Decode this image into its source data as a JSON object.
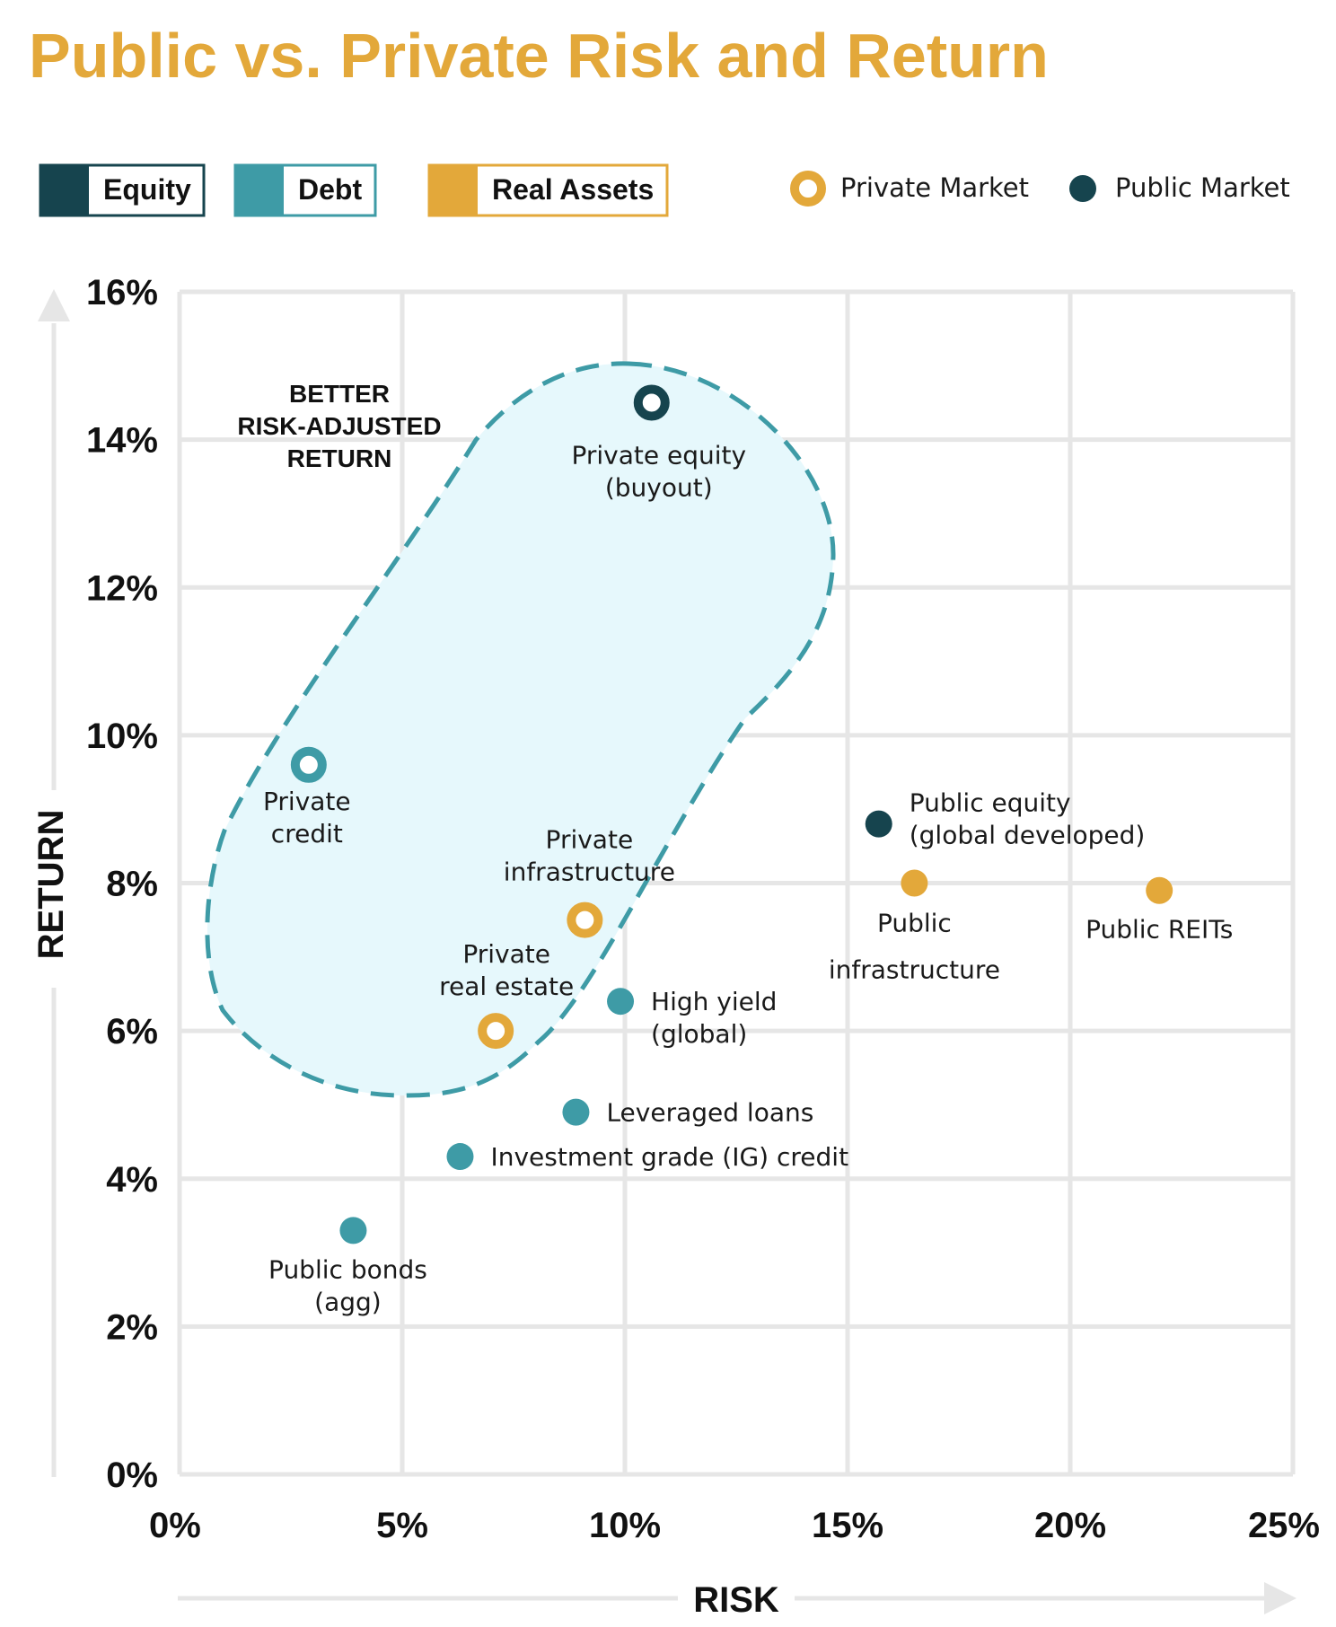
{
  "chart_data": {
    "type": "scatter",
    "title": "Public vs. Private Risk and Return",
    "xlabel": "RISK",
    "ylabel": "RETURN",
    "xlim": [
      0,
      25
    ],
    "ylim": [
      0,
      16
    ],
    "x_ticks": [
      0,
      5,
      10,
      15,
      20,
      25
    ],
    "x_tick_labels": [
      "0%",
      "5%",
      "10%",
      "15%",
      "20%",
      "25%"
    ],
    "y_ticks": [
      0,
      2,
      4,
      6,
      8,
      10,
      12,
      14,
      16
    ],
    "y_tick_labels": [
      "0%",
      "2%",
      "4%",
      "6%",
      "8%",
      "10%",
      "12%",
      "14%",
      "16%"
    ],
    "grid": true,
    "colors": {
      "equity": "#16444E",
      "debt": "#3E9BA6",
      "real_assets": "#E3A83A",
      "grid": "#E6E6E6",
      "zone_fill": "#E6F8FC",
      "zone_stroke": "#3E9BA6"
    },
    "legend": {
      "categories": [
        {
          "key": "equity",
          "label": "Equity"
        },
        {
          "key": "debt",
          "label": "Debt"
        },
        {
          "key": "real_assets",
          "label": "Real Assets"
        }
      ],
      "markers": [
        {
          "style": "private",
          "label": "Private Market"
        },
        {
          "style": "public",
          "label": "Public Market"
        }
      ]
    },
    "annotation": {
      "lines": [
        "BETTER",
        "RISK-ADJUSTED",
        "RETURN"
      ]
    },
    "points": [
      {
        "name": "Private equity (buyout)",
        "label_lines": [
          "Private equity",
          "(buyout)"
        ],
        "risk": 10.6,
        "return": 14.5,
        "category": "equity",
        "market": "private"
      },
      {
        "name": "Private credit",
        "label_lines": [
          "Private",
          "credit"
        ],
        "risk": 2.9,
        "return": 9.6,
        "category": "debt",
        "market": "private"
      },
      {
        "name": "Private infrastructure",
        "label_lines": [
          "Private",
          "infrastructure"
        ],
        "risk": 9.1,
        "return": 7.5,
        "category": "real_assets",
        "market": "private"
      },
      {
        "name": "Private real estate",
        "label_lines": [
          "Private",
          "real estate"
        ],
        "risk": 7.1,
        "return": 6.0,
        "category": "real_assets",
        "market": "private"
      },
      {
        "name": "Public equity (global developed)",
        "label_lines": [
          "Public equity",
          "(global developed)"
        ],
        "risk": 15.7,
        "return": 8.8,
        "category": "equity",
        "market": "public"
      },
      {
        "name": "Public infrastructure",
        "label_lines": [
          "Public",
          "infrastructure"
        ],
        "risk": 16.5,
        "return": 8.0,
        "category": "real_assets",
        "market": "public"
      },
      {
        "name": "Public REITs",
        "label_lines": [
          "Public REITs"
        ],
        "risk": 22.0,
        "return": 7.9,
        "category": "real_assets",
        "market": "public"
      },
      {
        "name": "High yield (global)",
        "label_lines": [
          "High yield",
          "(global)"
        ],
        "risk": 9.9,
        "return": 6.4,
        "category": "debt",
        "market": "public"
      },
      {
        "name": "Leveraged loans",
        "label_lines": [
          "Leveraged loans"
        ],
        "risk": 8.9,
        "return": 4.9,
        "category": "debt",
        "market": "public"
      },
      {
        "name": "Investment grade (IG) credit",
        "label_lines": [
          "Investment grade (IG) credit"
        ],
        "risk": 6.3,
        "return": 4.3,
        "category": "debt",
        "market": "public"
      },
      {
        "name": "Public bonds (agg)",
        "label_lines": [
          "Public bonds",
          "(agg)"
        ],
        "risk": 3.9,
        "return": 3.3,
        "category": "debt",
        "market": "public"
      }
    ]
  }
}
